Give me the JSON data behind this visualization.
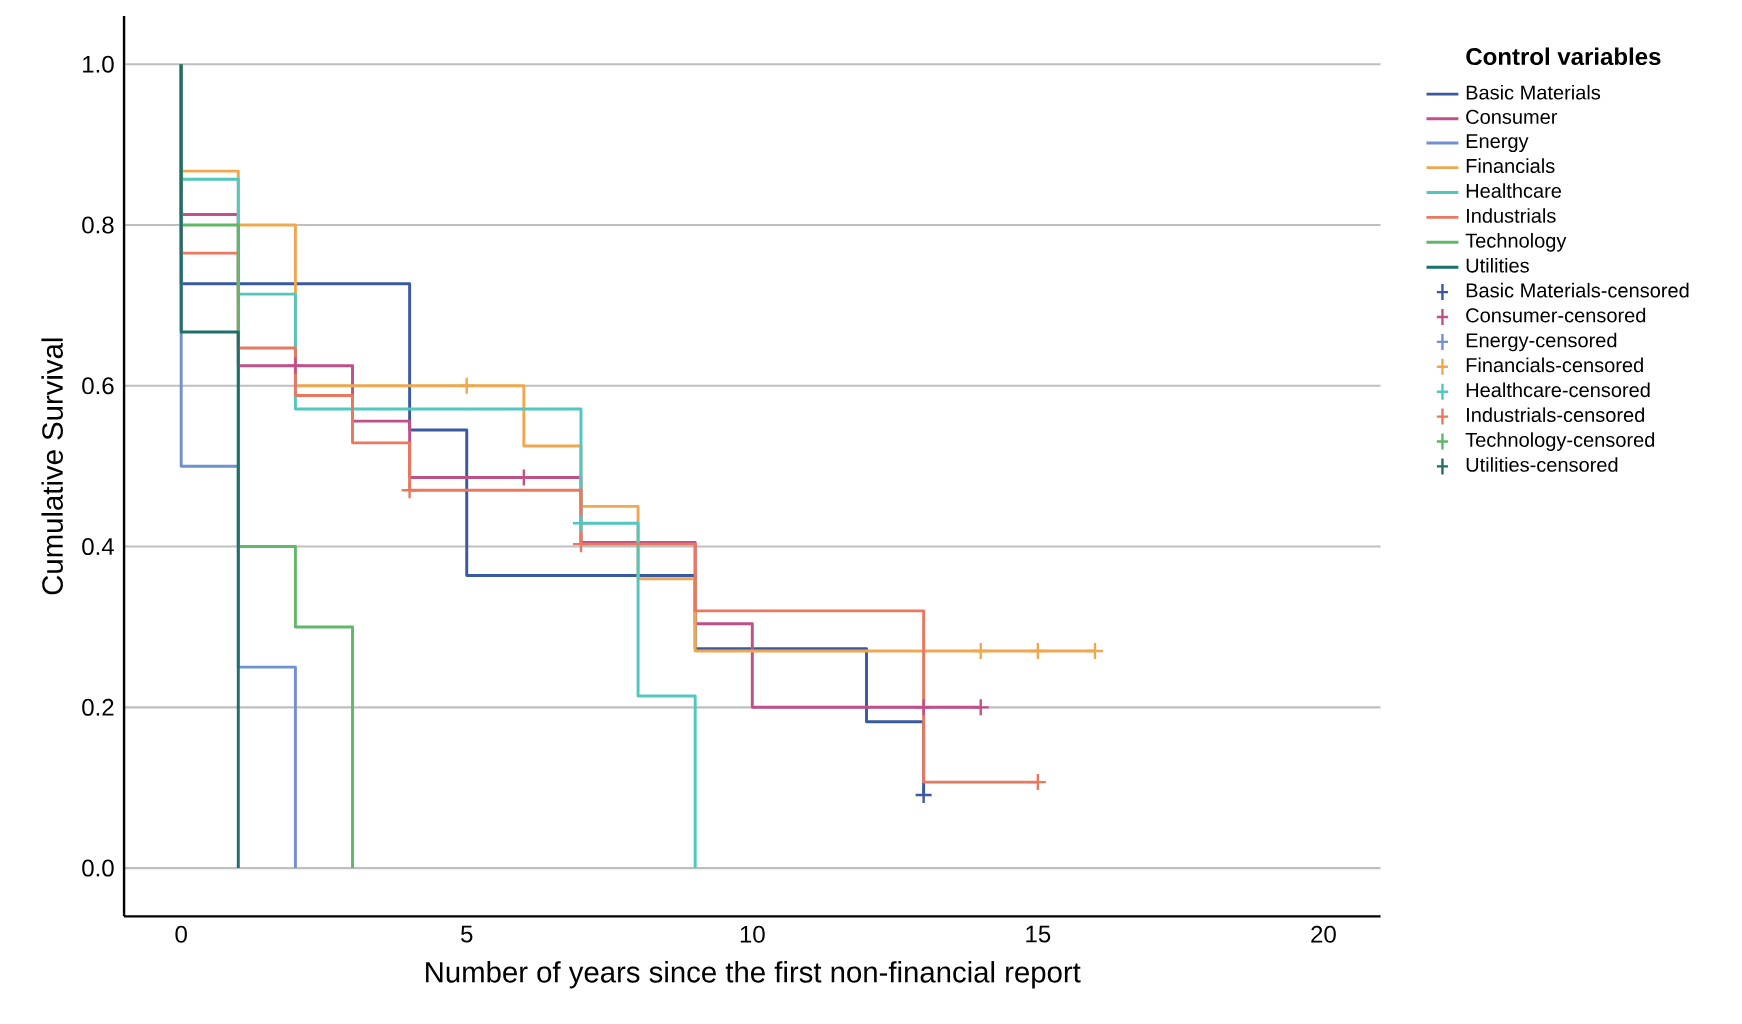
{
  "chart_data": {
    "type": "step",
    "xlabel": "Number of years since the first non-financial report",
    "ylabel": "Cumulative Survival",
    "legend_title": "Control variables",
    "legend": "right",
    "grid": "y",
    "xlim": [
      -1,
      21
    ],
    "ylim": [
      -0.06,
      1.06
    ],
    "xticks": [
      0,
      5,
      10,
      15,
      20
    ],
    "yticks": [
      {
        "value": 0,
        "label": "0.0"
      },
      {
        "value": 0.2,
        "label": "0.2"
      },
      {
        "value": 0.4,
        "label": "0.4"
      },
      {
        "value": 0.6,
        "label": "0.6"
      },
      {
        "value": 0.8,
        "label": "0.8"
      },
      {
        "value": 1,
        "label": "1.0"
      }
    ],
    "series": [
      {
        "name": "Basic Materials",
        "color": "#3a5aa0",
        "x": [
          0,
          0,
          4,
          5,
          9,
          12,
          13
        ],
        "values": [
          1,
          0.727,
          0.545,
          0.364,
          0.273,
          0.182,
          0.091
        ]
      },
      {
        "name": "Consumer",
        "color": "#c0508a",
        "x": [
          0,
          0,
          1,
          3,
          4,
          7,
          9,
          10,
          14
        ],
        "values": [
          1,
          0.813,
          0.625,
          0.556,
          0.486,
          0.405,
          0.304,
          0.2,
          0.2
        ]
      },
      {
        "name": "Energy",
        "color": "#7090d0",
        "x": [
          0,
          0,
          1,
          2
        ],
        "values": [
          1,
          0.5,
          0.25,
          0
        ]
      },
      {
        "name": "Financials",
        "color": "#f0a850",
        "x": [
          0,
          0,
          1,
          2,
          6,
          7,
          8,
          9,
          16
        ],
        "values": [
          1,
          0.867,
          0.8,
          0.6,
          0.525,
          0.45,
          0.36,
          0.27,
          0.27
        ]
      },
      {
        "name": "Healthcare",
        "color": "#50c8c0",
        "x": [
          0,
          0,
          1,
          2,
          7,
          8,
          9
        ],
        "values": [
          1,
          0.857,
          0.714,
          0.571,
          0.429,
          0.214,
          0
        ]
      },
      {
        "name": "Industrials",
        "color": "#e87860",
        "x": [
          0,
          0,
          1,
          2,
          3,
          4,
          7,
          9,
          13,
          15
        ],
        "values": [
          1,
          0.765,
          0.647,
          0.588,
          0.529,
          0.47,
          0.403,
          0.32,
          0.107,
          0.107
        ]
      },
      {
        "name": "Technology",
        "color": "#60b868",
        "x": [
          0,
          0,
          1,
          2,
          3
        ],
        "values": [
          1,
          0.8,
          0.4,
          0.3,
          0
        ]
      },
      {
        "name": "Utilities",
        "color": "#1f6f6a",
        "x": [
          0,
          0,
          1
        ],
        "values": [
          1,
          0.667,
          0
        ]
      },
      {
        "name": "Basic Materials-censored",
        "type": "scatter",
        "marker": "cross",
        "color": "#3a5aa0",
        "x": [
          13
        ],
        "values": [
          0.091
        ]
      },
      {
        "name": "Consumer-censored",
        "type": "scatter",
        "marker": "cross",
        "color": "#c0508a",
        "x": [
          2,
          6,
          13,
          14
        ],
        "values": [
          0.625,
          0.486,
          0.2,
          0.2
        ]
      },
      {
        "name": "Energy-censored",
        "type": "scatter",
        "marker": "cross",
        "color": "#7090d0"
      },
      {
        "name": "Financials-censored",
        "type": "scatter",
        "marker": "cross",
        "color": "#f0a850",
        "x": [
          5,
          14,
          15,
          16
        ],
        "values": [
          0.6,
          0.27,
          0.27,
          0.27
        ]
      },
      {
        "name": "Healthcare-censored",
        "type": "scatter",
        "marker": "cross",
        "color": "#50c8c0",
        "x": [
          7
        ],
        "values": [
          0.429
        ]
      },
      {
        "name": "Industrials-censored",
        "type": "scatter",
        "marker": "cross",
        "color": "#e87860",
        "x": [
          4,
          7,
          15
        ],
        "values": [
          0.47,
          0.403,
          0.107
        ]
      },
      {
        "name": "Technology-censored",
        "type": "scatter",
        "marker": "cross",
        "color": "#60b868"
      },
      {
        "name": "Utilities-censored",
        "type": "scatter",
        "marker": "cross",
        "color": "#1f6f6a"
      }
    ]
  }
}
